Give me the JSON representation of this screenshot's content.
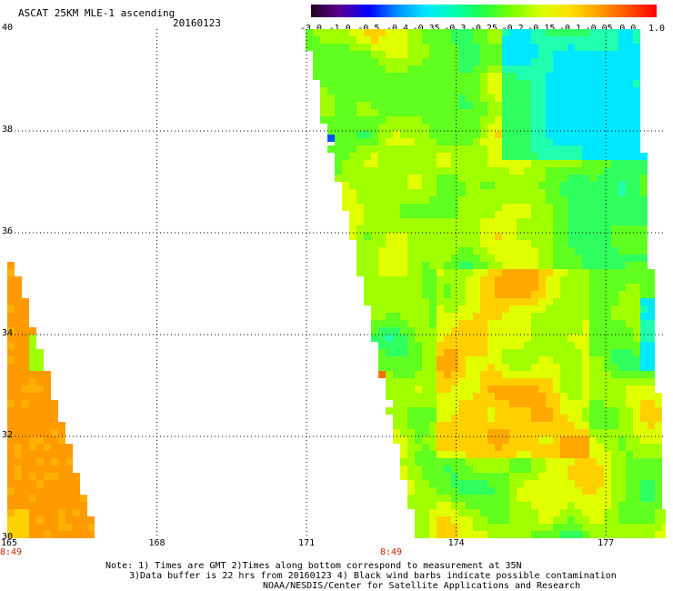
{
  "header": {
    "title": "ASCAT 25KM MLE-1 ascending",
    "date": "20160123"
  },
  "colorbar": {
    "ticks": [
      "-3.0",
      "-1.0",
      "-0.5",
      "-0.4",
      "-0.35",
      "-0.3",
      "-0.25",
      "-0.2",
      "-0.15",
      "-0.1",
      "-0.05",
      "0.0",
      "1.0"
    ],
    "colors": [
      "#220022",
      "#5a0090",
      "#0000ff",
      "#0090ff",
      "#00e8ff",
      "#00ffb0",
      "#20ff40",
      "#80ff00",
      "#d8ff00",
      "#ffe000",
      "#ffa000",
      "#ff5000",
      "#ff0000"
    ]
  },
  "map": {
    "lat_labels": [
      "40",
      "38",
      "36",
      "34",
      "32",
      "30"
    ],
    "lon_labels": [
      "165",
      "168",
      "171",
      "174",
      "177"
    ],
    "lat_range": [
      30,
      40
    ],
    "lon_range": [
      165,
      178.2
    ],
    "grid": "dotted"
  },
  "times": [
    "8:49",
    "8:49"
  ],
  "notes": {
    "line1": "Note: 1) Times are GMT 2)Times along bottom correspond to measurement at 35N",
    "line2": "3)Data buffer is 22 hrs from 20160123 4) Black wind barbs indicate possible contamination",
    "line3": "NOAA/NESDIS/Center for Satellite Applications and Research"
  }
}
